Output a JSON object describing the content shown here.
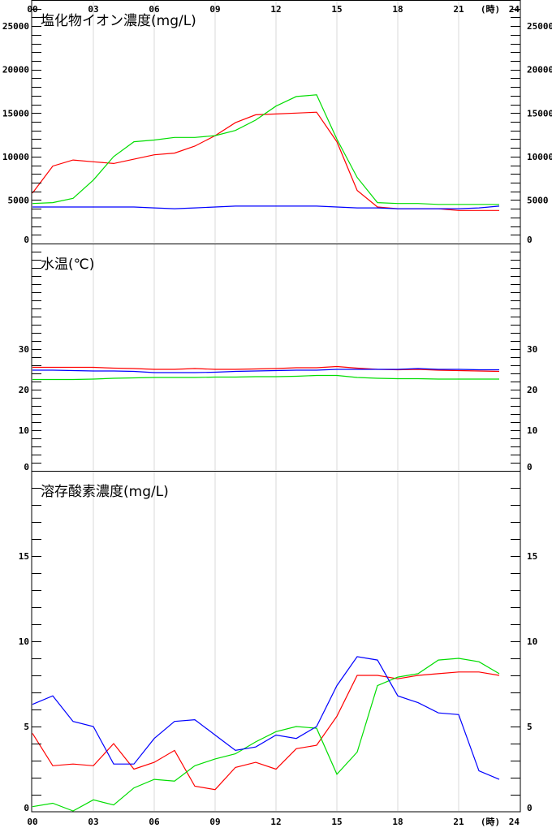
{
  "time_axis": {
    "ticks": [
      "00",
      "03",
      "06",
      "09",
      "12",
      "15",
      "18",
      "21",
      "24"
    ],
    "unit": "(時)"
  },
  "chart_data": [
    {
      "type": "line",
      "title": "塩化物イオン濃度(mg/L)",
      "x": [
        0,
        1,
        2,
        3,
        4,
        5,
        6,
        7,
        8,
        9,
        10,
        11,
        12,
        13,
        14,
        15,
        16,
        17,
        18,
        19,
        20,
        21,
        22,
        23
      ],
      "ylim": [
        0,
        28000
      ],
      "yticks": [
        0,
        5000,
        10000,
        15000,
        20000,
        25000
      ],
      "minor_step": 1000,
      "series": [
        {
          "color": "#ff0000",
          "values": [
            5800,
            8900,
            9600,
            9400,
            9200,
            9700,
            10200,
            10400,
            11200,
            12400,
            13900,
            14800,
            14900,
            15000,
            15100,
            11700,
            6100,
            4200,
            4000,
            4000,
            4000,
            3800,
            3800,
            3800
          ]
        },
        {
          "color": "#00dd00",
          "values": [
            4600,
            4700,
            5200,
            7300,
            10000,
            11700,
            11900,
            12200,
            12200,
            12400,
            13000,
            14200,
            15800,
            16900,
            17100,
            12000,
            7600,
            4700,
            4600,
            4600,
            4500,
            4500,
            4500,
            4500
          ]
        },
        {
          "color": "#0000ff",
          "values": [
            4200,
            4200,
            4200,
            4200,
            4200,
            4200,
            4100,
            4000,
            4100,
            4200,
            4300,
            4300,
            4300,
            4300,
            4300,
            4200,
            4100,
            4100,
            4000,
            4000,
            4000,
            4000,
            4100,
            4300
          ]
        }
      ]
    },
    {
      "type": "line",
      "title": "水温(℃)",
      "x": [
        0,
        1,
        2,
        3,
        4,
        5,
        6,
        7,
        8,
        9,
        10,
        11,
        12,
        13,
        14,
        15,
        16,
        17,
        18,
        19,
        20,
        21,
        22,
        23
      ],
      "ylim": [
        0,
        56
      ],
      "yticks": [
        0,
        10,
        20,
        30
      ],
      "minor_step": 2,
      "series": [
        {
          "color": "#ff0000",
          "values": [
            25.5,
            25.5,
            25.5,
            25.5,
            25.3,
            25.2,
            25.0,
            25.0,
            25.2,
            25.0,
            25.0,
            25.1,
            25.2,
            25.4,
            25.4,
            25.7,
            25.3,
            25.0,
            24.9,
            25.0,
            24.8,
            24.7,
            24.6,
            24.5
          ]
        },
        {
          "color": "#00dd00",
          "values": [
            22.5,
            22.5,
            22.5,
            22.6,
            22.8,
            22.9,
            23.0,
            23.0,
            23.0,
            23.1,
            23.1,
            23.2,
            23.2,
            23.3,
            23.5,
            23.5,
            23.0,
            22.8,
            22.7,
            22.7,
            22.6,
            22.6,
            22.6,
            22.6
          ]
        },
        {
          "color": "#0000ff",
          "values": [
            24.8,
            24.8,
            24.7,
            24.6,
            24.6,
            24.5,
            24.2,
            24.2,
            24.2,
            24.3,
            24.5,
            24.6,
            24.7,
            24.8,
            24.8,
            25.0,
            25.0,
            25.0,
            25.0,
            25.2,
            25.0,
            25.0,
            24.9,
            24.9
          ]
        }
      ]
    },
    {
      "type": "line",
      "title": "溶存酸素濃度(mg/L)",
      "x": [
        0,
        1,
        2,
        3,
        4,
        5,
        6,
        7,
        8,
        9,
        10,
        11,
        12,
        13,
        14,
        15,
        16,
        17,
        18,
        19,
        20,
        21,
        22,
        23
      ],
      "ylim": [
        0,
        20
      ],
      "yticks": [
        0,
        5,
        10,
        15
      ],
      "minor_step": 1,
      "series": [
        {
          "color": "#ff0000",
          "values": [
            4.6,
            2.7,
            2.8,
            2.7,
            4.0,
            2.5,
            2.9,
            3.6,
            1.5,
            1.3,
            2.6,
            2.9,
            2.5,
            3.7,
            3.9,
            5.6,
            8.0,
            8.0,
            7.8,
            8.0,
            8.1,
            8.2,
            8.2,
            8.0
          ]
        },
        {
          "color": "#00dd00",
          "values": [
            0.3,
            0.5,
            0.05,
            0.7,
            0.4,
            1.4,
            1.9,
            1.8,
            2.7,
            3.1,
            3.4,
            4.1,
            4.7,
            5.0,
            4.9,
            2.2,
            3.5,
            7.4,
            7.9,
            8.1,
            8.9,
            9.0,
            8.8,
            8.1
          ]
        },
        {
          "color": "#0000ff",
          "values": [
            6.3,
            6.8,
            5.3,
            5.0,
            2.8,
            2.8,
            4.3,
            5.3,
            5.4,
            4.5,
            3.6,
            3.8,
            4.5,
            4.3,
            5.0,
            7.4,
            9.1,
            8.9,
            6.8,
            6.4,
            5.8,
            5.7,
            2.4,
            1.9
          ]
        }
      ]
    }
  ]
}
